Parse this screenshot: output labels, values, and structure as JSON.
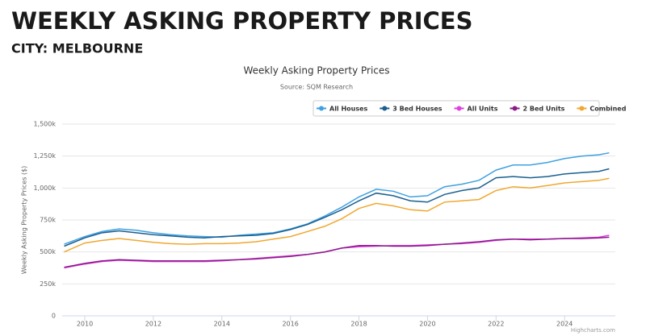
{
  "header": {
    "title": "WEEKLY ASKING PROPERTY PRICES",
    "subtitle": "CITY: MELBOURNE"
  },
  "chart_data": {
    "type": "line",
    "title": "Weekly Asking Property Prices",
    "subtitle": "Source: SQM Research",
    "y_label": "Weekly Asking Property Prices ($)",
    "credit": "Highcharts.com",
    "x": [
      2009.4,
      2010,
      2010.5,
      2011,
      2011.5,
      2012,
      2012.5,
      2013,
      2013.5,
      2014,
      2014.5,
      2015,
      2015.5,
      2016,
      2016.5,
      2017,
      2017.5,
      2018,
      2018.5,
      2019,
      2019.5,
      2020,
      2020.5,
      2021,
      2021.5,
      2022,
      2022.5,
      2023,
      2023.5,
      2024,
      2024.5,
      2025,
      2025.3
    ],
    "series": [
      {
        "name": "All Houses",
        "color": "#3fa1e0",
        "values": [
          560000,
          620000,
          660000,
          680000,
          670000,
          650000,
          635000,
          625000,
          620000,
          615000,
          630000,
          640000,
          650000,
          680000,
          720000,
          780000,
          850000,
          930000,
          990000,
          975000,
          930000,
          940000,
          1010000,
          1030000,
          1060000,
          1140000,
          1180000,
          1180000,
          1200000,
          1230000,
          1250000,
          1260000,
          1275000
        ]
      },
      {
        "name": "3 Bed Houses",
        "color": "#1a5f8f",
        "values": [
          545000,
          610000,
          650000,
          665000,
          650000,
          635000,
          625000,
          615000,
          610000,
          620000,
          625000,
          630000,
          645000,
          675000,
          715000,
          770000,
          830000,
          900000,
          960000,
          940000,
          900000,
          890000,
          950000,
          980000,
          1000000,
          1080000,
          1090000,
          1080000,
          1090000,
          1110000,
          1120000,
          1130000,
          1150000
        ]
      },
      {
        "name": "All Units",
        "color": "#e040e0",
        "values": [
          375000,
          405000,
          425000,
          435000,
          430000,
          425000,
          425000,
          425000,
          425000,
          430000,
          440000,
          450000,
          460000,
          470000,
          480000,
          500000,
          530000,
          540000,
          545000,
          550000,
          550000,
          555000,
          560000,
          565000,
          575000,
          590000,
          600000,
          600000,
          600000,
          605000,
          610000,
          615000,
          630000
        ]
      },
      {
        "name": "2 Bed Units",
        "color": "#8b1a8b",
        "values": [
          380000,
          410000,
          430000,
          440000,
          435000,
          430000,
          430000,
          430000,
          430000,
          435000,
          440000,
          445000,
          455000,
          465000,
          480000,
          500000,
          530000,
          550000,
          550000,
          545000,
          545000,
          550000,
          560000,
          570000,
          580000,
          595000,
          600000,
          595000,
          600000,
          605000,
          605000,
          610000,
          615000
        ]
      },
      {
        "name": "Combined",
        "color": "#f0a830",
        "values": [
          500000,
          570000,
          590000,
          605000,
          590000,
          575000,
          565000,
          560000,
          565000,
          565000,
          570000,
          580000,
          600000,
          620000,
          660000,
          700000,
          760000,
          840000,
          880000,
          860000,
          830000,
          820000,
          890000,
          900000,
          910000,
          980000,
          1010000,
          1000000,
          1020000,
          1040000,
          1050000,
          1060000,
          1075000
        ]
      }
    ],
    "xlim": [
      2009.34,
      2025.48
    ],
    "xticks": [
      2010,
      2012,
      2014,
      2016,
      2018,
      2020,
      2022,
      2024
    ],
    "ylim": [
      0,
      1500000
    ],
    "yticks": [
      0,
      {
        "value": 250000,
        "label": "250k"
      },
      {
        "value": 500000,
        "label": "500k"
      },
      {
        "value": 750000,
        "label": "750k"
      },
      {
        "value": 1000000,
        "label": "1,000k"
      },
      {
        "value": 1250000,
        "label": "1,250k"
      },
      {
        "value": 1500000,
        "label": "1,500k"
      }
    ],
    "grid": true
  }
}
